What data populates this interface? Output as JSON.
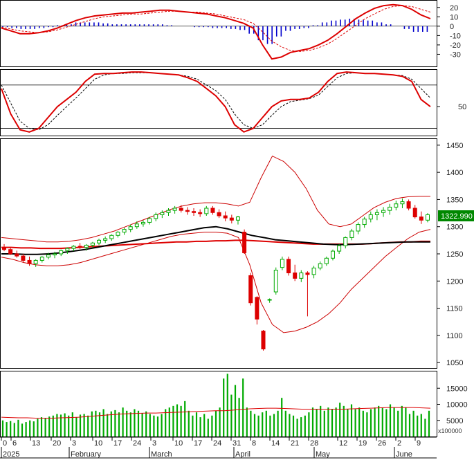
{
  "chart_data": [
    {
      "type": "bar",
      "panel": "macd",
      "ylim": [
        -40,
        25
      ],
      "y_ticks": [
        "20",
        "10",
        "0",
        "-10",
        "-20",
        "-30"
      ],
      "histogram_colors": {
        "positive": "#0000cc",
        "negative": "#0000cc"
      },
      "macd_line": [
        -2,
        -5,
        -8,
        -8,
        -7,
        -5,
        -2,
        2,
        6,
        9,
        11,
        12,
        13,
        14,
        14,
        15,
        16,
        17,
        17,
        16,
        15,
        14,
        13,
        11,
        9,
        6,
        3,
        -2,
        -20,
        -35,
        -33,
        -28,
        -26,
        -24,
        -20,
        -15,
        -8,
        0,
        8,
        14,
        19,
        22,
        23,
        22,
        18,
        12,
        8
      ],
      "signal_line": [
        -1,
        -3,
        -5,
        -6,
        -7,
        -6,
        -4,
        -1,
        2,
        5,
        8,
        10,
        11,
        12,
        13,
        13,
        14,
        15,
        16,
        16,
        15,
        15,
        14,
        13,
        11,
        9,
        7,
        3,
        -6,
        -16,
        -22,
        -26,
        -27,
        -26,
        -23,
        -19,
        -13,
        -6,
        1,
        8,
        13,
        18,
        21,
        22,
        21,
        18,
        15
      ],
      "histogram": [
        -1,
        -2,
        -3,
        -3,
        -2,
        -1,
        1,
        2,
        4,
        4,
        4,
        3,
        2,
        2,
        2,
        2,
        2,
        2,
        1,
        0,
        0,
        -1,
        -1,
        -2,
        -2,
        -3,
        -4,
        -8,
        -15,
        -19,
        -11,
        -5,
        -3,
        -2,
        1,
        4,
        6,
        7,
        8,
        7,
        6,
        4,
        2,
        0,
        -3,
        -6,
        -6
      ]
    },
    {
      "type": "line",
      "panel": "stochastic",
      "ylim": [
        10,
        100
      ],
      "y_ticks": [
        "50"
      ],
      "levels": [
        80,
        20
      ],
      "k_line": [
        75,
        40,
        18,
        15,
        20,
        35,
        50,
        60,
        70,
        85,
        95,
        96,
        96,
        97,
        98,
        98,
        97,
        96,
        95,
        94,
        90,
        85,
        75,
        65,
        50,
        25,
        15,
        20,
        35,
        50,
        58,
        60,
        60,
        62,
        70,
        85,
        96,
        98,
        97,
        96,
        96,
        95,
        94,
        92,
        85,
        60,
        50
      ],
      "d_line": [
        80,
        55,
        30,
        20,
        18,
        25,
        38,
        50,
        62,
        75,
        88,
        94,
        96,
        96,
        97,
        97,
        97,
        96,
        95,
        94,
        92,
        88,
        80,
        72,
        60,
        40,
        25,
        20,
        25,
        38,
        50,
        57,
        59,
        61,
        66,
        78,
        90,
        96,
        97,
        96,
        96,
        95,
        94,
        93,
        88,
        75,
        62
      ]
    },
    {
      "type": "line",
      "panel": "price",
      "ylim": [
        1040,
        1460
      ],
      "y_ticks": [
        "1450",
        "1400",
        "1350",
        "1300",
        "1250",
        "1200",
        "1150",
        "1100",
        "1050"
      ],
      "last_price_label": "1322.990",
      "colors": {
        "up": "#00aa00",
        "down": "#dd0000",
        "ma_long": "#dd0000",
        "ma_mid": "#000000",
        "bands": "#cc0000"
      },
      "candles": [
        [
          1262,
          1268,
          1255,
          1258
        ],
        [
          1258,
          1262,
          1248,
          1250
        ],
        [
          1250,
          1256,
          1243,
          1246
        ],
        [
          1246,
          1250,
          1235,
          1238
        ],
        [
          1238,
          1245,
          1228,
          1232
        ],
        [
          1232,
          1240,
          1226,
          1238
        ],
        [
          1238,
          1246,
          1234,
          1244
        ],
        [
          1244,
          1252,
          1240,
          1248
        ],
        [
          1248,
          1254,
          1242,
          1250
        ],
        [
          1250,
          1258,
          1246,
          1256
        ],
        [
          1256,
          1262,
          1250,
          1260
        ],
        [
          1260,
          1266,
          1255,
          1264
        ],
        [
          1264,
          1270,
          1259,
          1262
        ],
        [
          1262,
          1268,
          1256,
          1266
        ],
        [
          1266,
          1272,
          1262,
          1270
        ],
        [
          1270,
          1278,
          1266,
          1275
        ],
        [
          1275,
          1282,
          1270,
          1278
        ],
        [
          1278,
          1286,
          1274,
          1284
        ],
        [
          1284,
          1292,
          1280,
          1290
        ],
        [
          1290,
          1298,
          1285,
          1295
        ],
        [
          1295,
          1304,
          1290,
          1300
        ],
        [
          1300,
          1310,
          1296,
          1305
        ],
        [
          1305,
          1312,
          1300,
          1308
        ],
        [
          1308,
          1318,
          1304,
          1315
        ],
        [
          1315,
          1326,
          1310,
          1322
        ],
        [
          1322,
          1330,
          1316,
          1326
        ],
        [
          1326,
          1334,
          1320,
          1330
        ],
        [
          1330,
          1338,
          1324,
          1334
        ],
        [
          1334,
          1340,
          1326,
          1330
        ],
        [
          1330,
          1336,
          1322,
          1328
        ],
        [
          1328,
          1334,
          1320,
          1326
        ],
        [
          1326,
          1332,
          1318,
          1324
        ],
        [
          1324,
          1338,
          1320,
          1334
        ],
        [
          1334,
          1338,
          1322,
          1326
        ],
        [
          1326,
          1332,
          1316,
          1320
        ],
        [
          1320,
          1328,
          1310,
          1316
        ],
        [
          1316,
          1322,
          1306,
          1312
        ],
        [
          1312,
          1320,
          1304,
          1318
        ],
        [
          1290,
          1295,
          1250,
          1252
        ],
        [
          1210,
          1215,
          1155,
          1160
        ],
        [
          1170,
          1172,
          1120,
          1130
        ],
        [
          1108,
          1110,
          1072,
          1075
        ],
        [
          1165,
          1168,
          1160,
          1166
        ],
        [
          1180,
          1225,
          1175,
          1220
        ],
        [
          1225,
          1245,
          1220,
          1240
        ],
        [
          1240,
          1245,
          1210,
          1215
        ],
        [
          1215,
          1230,
          1200,
          1205
        ],
        [
          1205,
          1220,
          1198,
          1215
        ],
        [
          1215,
          1218,
          1135,
          1212
        ],
        [
          1212,
          1228,
          1205,
          1224
        ],
        [
          1224,
          1236,
          1220,
          1232
        ],
        [
          1232,
          1245,
          1228,
          1242
        ],
        [
          1242,
          1258,
          1238,
          1255
        ],
        [
          1255,
          1268,
          1250,
          1265
        ],
        [
          1265,
          1282,
          1260,
          1280
        ],
        [
          1280,
          1296,
          1275,
          1292
        ],
        [
          1292,
          1308,
          1286,
          1304
        ],
        [
          1304,
          1318,
          1298,
          1314
        ],
        [
          1314,
          1328,
          1308,
          1322
        ],
        [
          1322,
          1332,
          1312,
          1326
        ],
        [
          1326,
          1336,
          1318,
          1330
        ],
        [
          1330,
          1342,
          1322,
          1336
        ],
        [
          1336,
          1348,
          1330,
          1342
        ],
        [
          1342,
          1352,
          1334,
          1346
        ],
        [
          1346,
          1350,
          1330,
          1334
        ],
        [
          1334,
          1340,
          1315,
          1318
        ],
        [
          1318,
          1328,
          1305,
          1312
        ],
        [
          1312,
          1325,
          1308,
          1322
        ]
      ],
      "ma_long": [
        1262,
        1262,
        1261,
        1261,
        1260,
        1260,
        1260,
        1261,
        1262,
        1263,
        1264,
        1265,
        1266,
        1267,
        1268,
        1269,
        1270,
        1271,
        1272,
        1272,
        1273,
        1273,
        1274,
        1274,
        1275,
        1275,
        1274,
        1273,
        1272,
        1271,
        1270,
        1269,
        1268,
        1268,
        1268,
        1268,
        1268,
        1268,
        1269,
        1270,
        1271,
        1272,
        1272,
        1273,
        1273
      ],
      "ma_mid": [
        1250,
        1250,
        1249,
        1249,
        1250,
        1252,
        1255,
        1258,
        1262,
        1266,
        1270,
        1274,
        1278,
        1282,
        1286,
        1290,
        1294,
        1298,
        1300,
        1296,
        1290,
        1284,
        1280,
        1276,
        1274,
        1272,
        1270,
        1268,
        1267,
        1267,
        1268,
        1269,
        1270,
        1271,
        1272,
        1272,
        1272
      ],
      "upper_band": [
        1280,
        1278,
        1276,
        1274,
        1272,
        1272,
        1273,
        1276,
        1280,
        1286,
        1292,
        1300,
        1308,
        1316,
        1324,
        1332,
        1338,
        1342,
        1344,
        1344,
        1342,
        1338,
        1345,
        1390,
        1430,
        1420,
        1400,
        1370,
        1330,
        1305,
        1300,
        1305,
        1320,
        1335,
        1345,
        1352,
        1355,
        1356,
        1356
      ],
      "lower_band": [
        1244,
        1240,
        1234,
        1230,
        1228,
        1228,
        1230,
        1234,
        1240,
        1246,
        1252,
        1258,
        1264,
        1270,
        1276,
        1282,
        1286,
        1288,
        1290,
        1290,
        1288,
        1280,
        1230,
        1160,
        1120,
        1105,
        1108,
        1115,
        1125,
        1140,
        1160,
        1185,
        1205,
        1225,
        1245,
        1262,
        1278,
        1290,
        1295
      ]
    },
    {
      "type": "bar",
      "panel": "volume",
      "ylim": [
        0,
        20000
      ],
      "y_ticks": [
        "15000",
        "10000",
        "5000"
      ],
      "unit_label": "x100000",
      "bar_color": "#00aa00",
      "values": [
        5000,
        4500,
        4800,
        4200,
        5200,
        4000,
        4500,
        5000,
        4700,
        5500,
        6000,
        5800,
        6200,
        6500,
        7000,
        6800,
        7200,
        6500,
        7500,
        6000,
        6800,
        7000,
        6500,
        7800,
        8000,
        7500,
        8500,
        7000,
        7800,
        8200,
        7500,
        9000,
        8000,
        7500,
        8500,
        8000,
        7200,
        7800,
        7000,
        6500,
        6200,
        7000,
        8500,
        9000,
        9500,
        10000,
        9500,
        11000,
        8000,
        6500,
        7500,
        6000,
        7000,
        5500,
        6500,
        8000,
        9000,
        18000,
        19500,
        13000,
        16000,
        12000,
        18000,
        9000,
        8000,
        7000,
        6500,
        7500,
        8000,
        6500,
        7000,
        8000,
        12000,
        8000,
        7000,
        6500,
        5500,
        6000,
        6500,
        7500,
        9000,
        8500,
        9500,
        8000,
        9000,
        8500,
        9000,
        10500,
        9500,
        8500,
        10000,
        8500,
        9000,
        8000,
        7500,
        8500,
        9000,
        9500,
        9000,
        8500,
        10000,
        9000,
        8000,
        9500,
        9000,
        7000,
        8000,
        6500,
        7000,
        5500,
        8000
      ],
      "ma_volume": [
        6000,
        5900,
        5800,
        5800,
        5700,
        5700,
        5700,
        5800,
        5900,
        6000,
        6200,
        6400,
        6600,
        6800,
        7000,
        7100,
        7200,
        7300,
        7300,
        7400,
        7500,
        7600,
        7700,
        7800,
        7900,
        8000,
        8000,
        8200,
        8400,
        8600,
        8700,
        8800,
        8800,
        8700,
        8600,
        8500,
        8500,
        8500,
        8500,
        8500,
        8500,
        8600,
        8700,
        8800,
        8900,
        9000,
        9000,
        9000,
        9000,
        8900,
        8800
      ]
    }
  ],
  "x_axis": {
    "day_ticks": [
      "0",
      "6",
      "13",
      "20",
      "3",
      "10",
      "17",
      "24",
      "3",
      "10",
      "17",
      "24",
      "31",
      "8",
      "14",
      "21",
      "28",
      "12",
      "19",
      "26",
      "2",
      "9"
    ],
    "month_labels": [
      "2025",
      "February",
      "March",
      "April",
      "May",
      "June"
    ]
  }
}
